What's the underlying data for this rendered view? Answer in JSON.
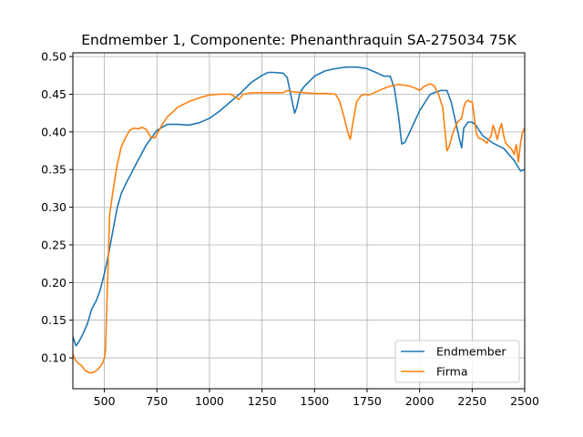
{
  "chart_data": {
    "type": "line",
    "title": "Endmember 1, Componente: Phenanthraquin SA-275034 75K",
    "xlabel": "",
    "ylabel": "",
    "xlim": [
      350,
      2500
    ],
    "ylim": [
      0.059,
      0.505
    ],
    "xticks": [
      500,
      750,
      1000,
      1250,
      1500,
      1750,
      2000,
      2250,
      2500
    ],
    "xtick_labels": [
      "500",
      "750",
      "1000",
      "1250",
      "1500",
      "1750",
      "2000",
      "2250",
      "2500"
    ],
    "yticks": [
      0.1,
      0.15,
      0.2,
      0.25,
      0.3,
      0.35,
      0.4,
      0.45,
      0.5
    ],
    "ytick_labels": [
      "0.10",
      "0.15",
      "0.20",
      "0.25",
      "0.30",
      "0.35",
      "0.40",
      "0.45",
      "0.50"
    ],
    "grid": true,
    "legend_position": "lower-right",
    "series": [
      {
        "name": "Endmember",
        "color": "#1f77b4",
        "x": [
          350,
          365,
          380,
          400,
          420,
          440,
          460,
          480,
          500,
          520,
          540,
          560,
          580,
          600,
          650,
          700,
          750,
          800,
          850,
          900,
          950,
          1000,
          1050,
          1100,
          1150,
          1200,
          1250,
          1280,
          1300,
          1350,
          1370,
          1390,
          1405,
          1415,
          1430,
          1450,
          1500,
          1550,
          1600,
          1650,
          1700,
          1750,
          1800,
          1830,
          1860,
          1880,
          1900,
          1915,
          1930,
          1950,
          2000,
          2050,
          2100,
          2130,
          2150,
          2170,
          2190,
          2200,
          2210,
          2230,
          2250,
          2270,
          2300,
          2350,
          2400,
          2450,
          2480,
          2500
        ],
        "y": [
          0.128,
          0.116,
          0.122,
          0.133,
          0.146,
          0.165,
          0.175,
          0.19,
          0.212,
          0.238,
          0.268,
          0.298,
          0.318,
          0.33,
          0.357,
          0.383,
          0.402,
          0.41,
          0.41,
          0.409,
          0.412,
          0.418,
          0.428,
          0.44,
          0.452,
          0.466,
          0.475,
          0.479,
          0.479,
          0.478,
          0.472,
          0.445,
          0.425,
          0.432,
          0.452,
          0.46,
          0.474,
          0.481,
          0.484,
          0.486,
          0.486,
          0.484,
          0.478,
          0.474,
          0.474,
          0.458,
          0.42,
          0.384,
          0.386,
          0.398,
          0.428,
          0.45,
          0.455,
          0.455,
          0.44,
          0.415,
          0.39,
          0.379,
          0.405,
          0.413,
          0.413,
          0.408,
          0.395,
          0.385,
          0.378,
          0.362,
          0.348,
          0.35
        ]
      },
      {
        "name": "Firma",
        "color": "#ff7f0e",
        "x": [
          350,
          360,
          375,
          390,
          410,
          430,
          450,
          470,
          490,
          500,
          505,
          515,
          525,
          540,
          560,
          580,
          600,
          620,
          640,
          660,
          680,
          700,
          720,
          740,
          760,
          780,
          800,
          850,
          900,
          950,
          1000,
          1050,
          1100,
          1120,
          1140,
          1160,
          1200,
          1250,
          1300,
          1350,
          1370,
          1400,
          1450,
          1500,
          1550,
          1600,
          1620,
          1640,
          1660,
          1670,
          1680,
          1700,
          1720,
          1740,
          1760,
          1800,
          1850,
          1900,
          1950,
          1980,
          2000,
          2020,
          2050,
          2070,
          2090,
          2110,
          2130,
          2140,
          2160,
          2180,
          2200,
          2210,
          2220,
          2230,
          2240,
          2250,
          2260,
          2270,
          2280,
          2300,
          2320,
          2340,
          2350,
          2360,
          2370,
          2380,
          2390,
          2400,
          2410,
          2420,
          2440,
          2450,
          2460,
          2470,
          2480,
          2490,
          2500
        ],
        "y": [
          0.105,
          0.098,
          0.093,
          0.09,
          0.083,
          0.08,
          0.081,
          0.085,
          0.092,
          0.1,
          0.11,
          0.2,
          0.29,
          0.32,
          0.355,
          0.38,
          0.392,
          0.402,
          0.405,
          0.404,
          0.406,
          0.403,
          0.393,
          0.392,
          0.402,
          0.412,
          0.42,
          0.433,
          0.44,
          0.445,
          0.449,
          0.45,
          0.45,
          0.447,
          0.443,
          0.45,
          0.452,
          0.452,
          0.452,
          0.452,
          0.455,
          0.453,
          0.452,
          0.451,
          0.451,
          0.45,
          0.44,
          0.42,
          0.398,
          0.39,
          0.408,
          0.44,
          0.448,
          0.45,
          0.449,
          0.454,
          0.46,
          0.463,
          0.461,
          0.458,
          0.455,
          0.46,
          0.464,
          0.461,
          0.45,
          0.432,
          0.375,
          0.38,
          0.4,
          0.413,
          0.418,
          0.433,
          0.44,
          0.442,
          0.44,
          0.44,
          0.42,
          0.398,
          0.392,
          0.39,
          0.385,
          0.395,
          0.409,
          0.4,
          0.39,
          0.403,
          0.411,
          0.395,
          0.385,
          0.382,
          0.376,
          0.37,
          0.383,
          0.36,
          0.385,
          0.4,
          0.405
        ]
      }
    ]
  }
}
